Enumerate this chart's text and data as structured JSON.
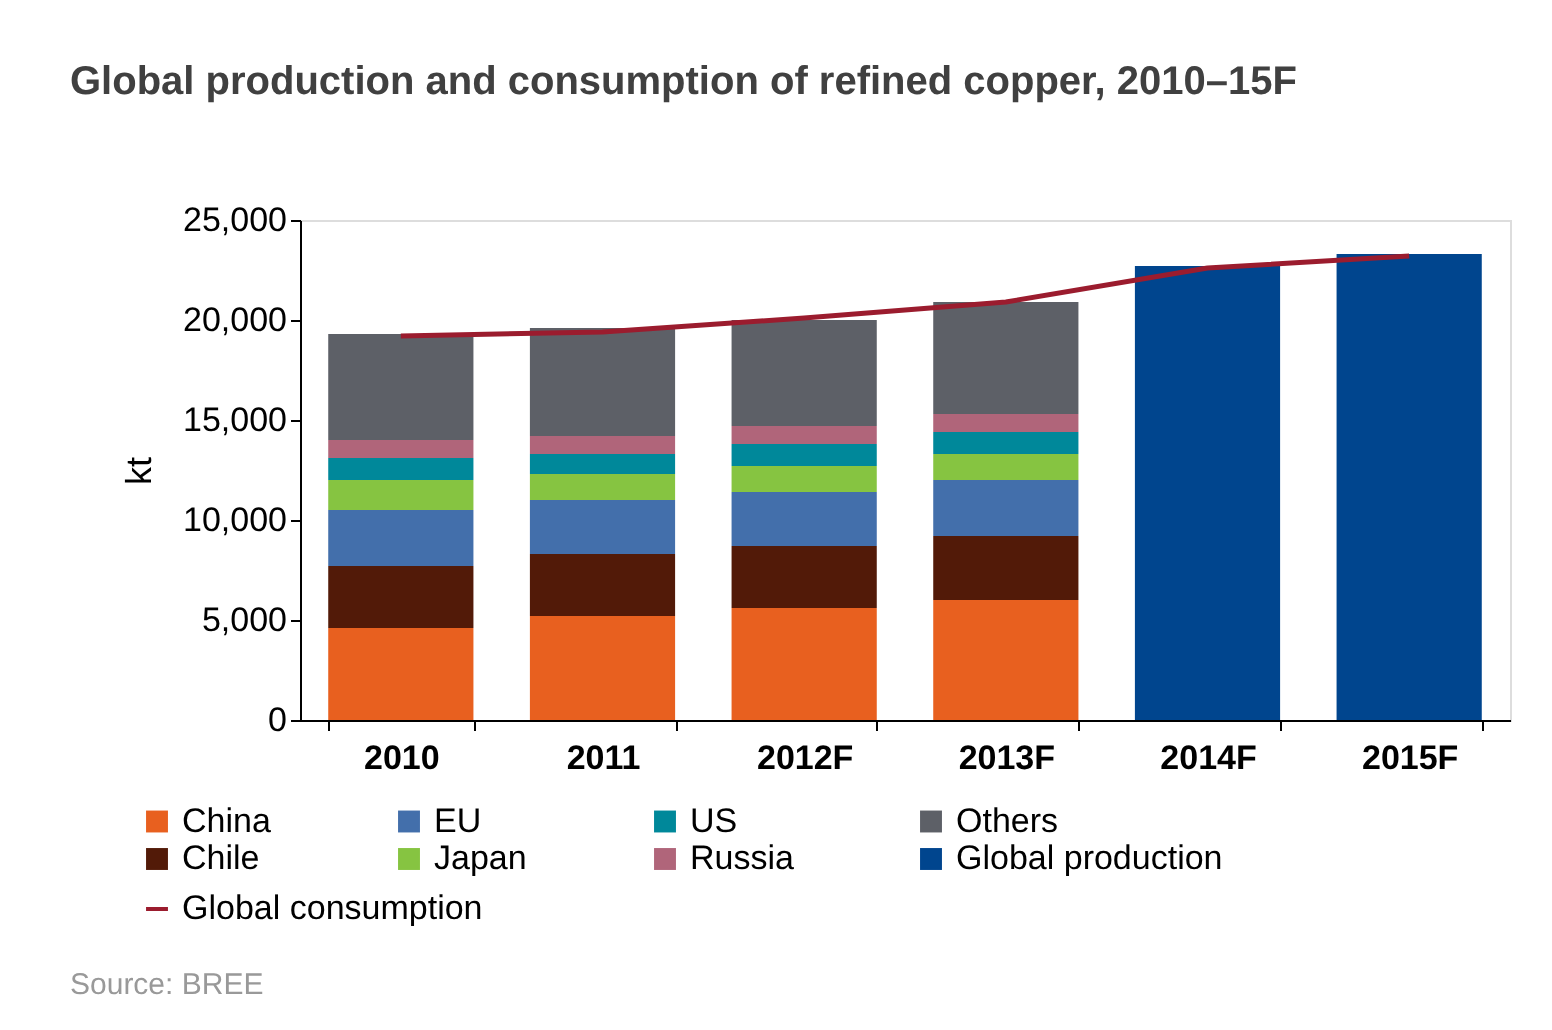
{
  "chart_data": {
    "type": "bar",
    "stacked": true,
    "title": "Global production and consumption of refined copper, 2010–15F",
    "ylabel": "kt",
    "categories": [
      "2010",
      "2011",
      "2012F",
      "2013F",
      "2014F",
      "2015F"
    ],
    "series": [
      {
        "name": "China",
        "color": "#e8601f",
        "values": [
          4600,
          5200,
          5600,
          6000,
          null,
          null
        ]
      },
      {
        "name": "Chile",
        "color": "#521a08",
        "values": [
          3100,
          3100,
          3100,
          3200,
          null,
          null
        ]
      },
      {
        "name": "EU",
        "color": "#436fab",
        "values": [
          2800,
          2700,
          2700,
          2800,
          null,
          null
        ]
      },
      {
        "name": "Japan",
        "color": "#86c441",
        "values": [
          1500,
          1300,
          1300,
          1300,
          null,
          null
        ]
      },
      {
        "name": "US",
        "color": "#00889a",
        "values": [
          1100,
          1000,
          1100,
          1100,
          null,
          null
        ]
      },
      {
        "name": "Russia",
        "color": "#b0657a",
        "values": [
          900,
          900,
          900,
          900,
          null,
          null
        ]
      },
      {
        "name": "Others",
        "color": "#5d6067",
        "values": [
          5300,
          5400,
          5300,
          5600,
          null,
          null
        ]
      },
      {
        "name": "Global production",
        "color": "#00458e",
        "values": [
          null,
          null,
          null,
          null,
          22700,
          23300
        ]
      },
      {
        "name": "Global consumption",
        "color": "#9b1c2e",
        "type": "line",
        "values": [
          19200,
          19400,
          20100,
          20900,
          22600,
          23200
        ]
      }
    ],
    "ylim": [
      0,
      25000
    ],
    "yticks": [
      0,
      {
        "value": 5000,
        "label": "5,000"
      },
      {
        "value": 10000,
        "label": "10,000"
      },
      {
        "value": 15000,
        "label": "15,000"
      },
      {
        "value": 20000,
        "label": "20,000"
      },
      {
        "value": 25000,
        "label": "25,000"
      }
    ],
    "grid": false,
    "legend": "bottom",
    "annotations": [
      "Source: BREE"
    ]
  }
}
